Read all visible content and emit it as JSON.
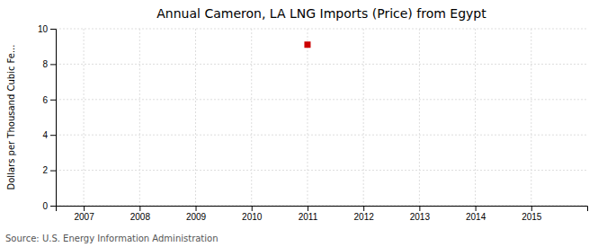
{
  "chart_data": {
    "type": "scatter",
    "title": "Annual Cameron, LA LNG Imports (Price) from Egypt",
    "y_label": "Dollars per Thousand Cubic Fe...",
    "annotations": [
      "Source: U.S. Energy Information Administration"
    ],
    "x": [
      2011
    ],
    "values": [
      9.1
    ],
    "color": "#cc0000",
    "marker": "square",
    "xlim": [
      2006.5,
      2016.0
    ],
    "xticks": [
      2007,
      2008,
      2009,
      2010,
      2011,
      2012,
      2013,
      2014,
      2015
    ],
    "ylim": [
      0,
      10
    ],
    "yticks": [
      0,
      2,
      4,
      6,
      8,
      10
    ],
    "grid": true
  }
}
